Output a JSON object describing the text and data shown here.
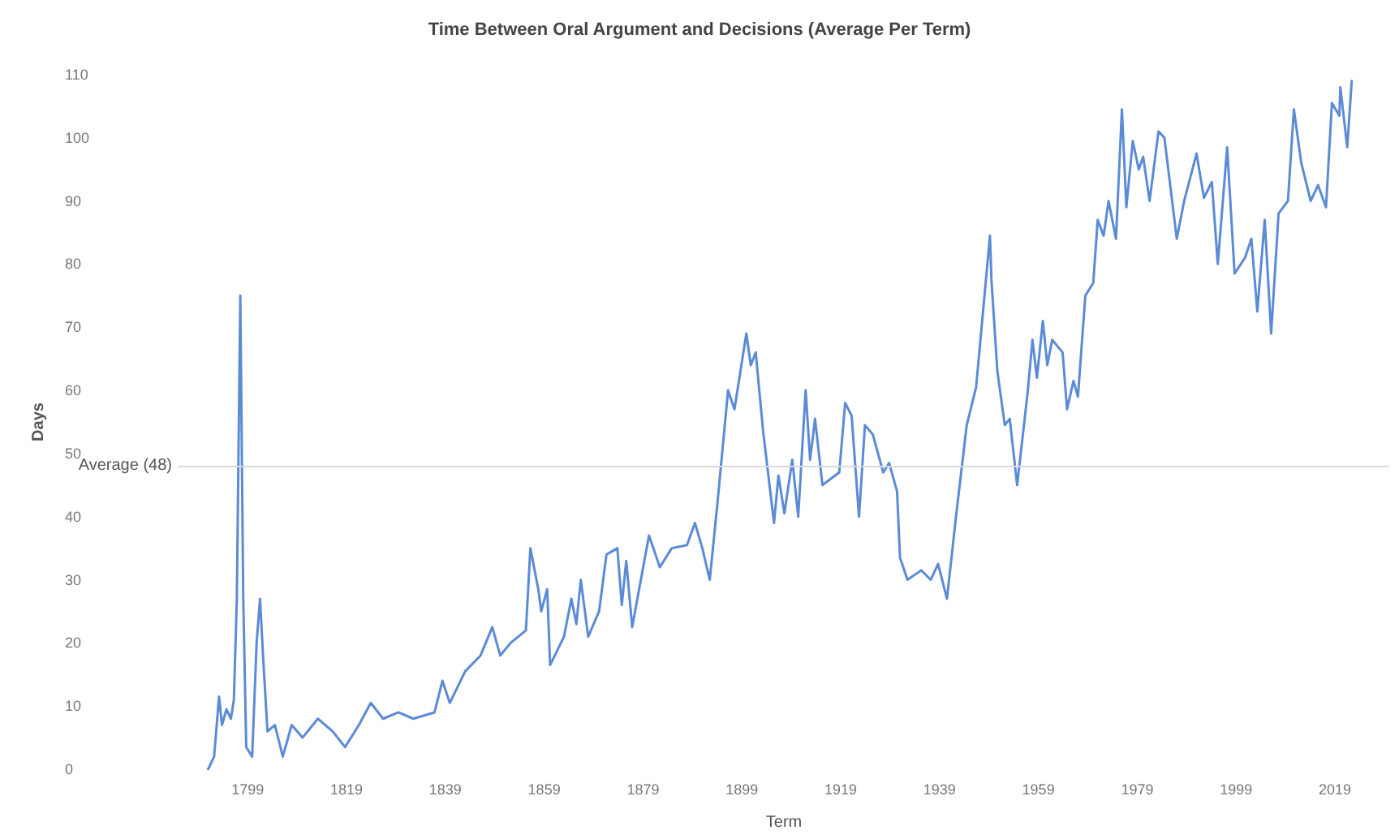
{
  "chart_data": {
    "type": "line",
    "title": "Time Between Oral Argument and Decisions (Average Per Term)",
    "xlabel": "Term",
    "ylabel": "Days",
    "x": [
      1791.0,
      1792.2,
      1793.2,
      1793.8,
      1794.7,
      1795.6,
      1796.2,
      1796.8,
      1797.5,
      1798.1,
      1798.7,
      1799.9,
      1800.8,
      1801.5,
      1802.1,
      1803.0,
      1804.5,
      1806.1,
      1807.9,
      1810.1,
      1813.2,
      1816.2,
      1818.7,
      1821.5,
      1823.9,
      1826.4,
      1829.5,
      1832.5,
      1836.8,
      1838.4,
      1839.9,
      1843.0,
      1846.1,
      1848.5,
      1850.1,
      1852.2,
      1855.3,
      1856.2,
      1857.8,
      1858.4,
      1859.6,
      1860.2,
      1863.0,
      1864.5,
      1865.5,
      1866.4,
      1867.9,
      1870.1,
      1871.6,
      1873.8,
      1874.7,
      1875.6,
      1876.8,
      1880.2,
      1882.4,
      1884.8,
      1887.9,
      1889.5,
      1891.0,
      1892.5,
      1894.1,
      1896.2,
      1897.5,
      1899.9,
      1900.8,
      1901.8,
      1903.3,
      1905.5,
      1906.4,
      1907.6,
      1909.2,
      1910.4,
      1911.9,
      1912.8,
      1913.8,
      1915.3,
      1918.7,
      1919.9,
      1921.2,
      1922.7,
      1923.9,
      1925.5,
      1927.6,
      1928.8,
      1930.4,
      1931.0,
      1932.5,
      1935.3,
      1937.2,
      1938.7,
      1940.5,
      1942.4,
      1944.5,
      1946.4,
      1949.2,
      1949.5,
      1950.7,
      1952.2,
      1953.2,
      1954.7,
      1956.8,
      1957.8,
      1958.7,
      1959.9,
      1960.8,
      1961.8,
      1963.9,
      1964.8,
      1966.1,
      1967.0,
      1968.5,
      1970.1,
      1971.0,
      1972.2,
      1973.2,
      1974.7,
      1975.9,
      1976.8,
      1978.1,
      1979.3,
      1980.2,
      1981.5,
      1983.3,
      1984.5,
      1987.0,
      1988.5,
      1991.0,
      1992.5,
      1994.1,
      1995.3,
      1997.2,
      1998.7,
      2000.8,
      2002.1,
      2003.3,
      2004.8,
      2006.1,
      2007.6,
      2009.5,
      2010.7,
      2012.2,
      2014.1,
      2015.6,
      2017.2,
      2018.4,
      2019.9,
      2020.1,
      2021.5,
      2022.4
    ],
    "series": [
      {
        "color": "#5b8bd6",
        "values": [
          0,
          2,
          11.5,
          7,
          9.5,
          8,
          11,
          27,
          75,
          27,
          3.5,
          2,
          20,
          27,
          18,
          6,
          7,
          2,
          7,
          5,
          8,
          6,
          3.5,
          7,
          10.5,
          8,
          9,
          8,
          9,
          14,
          10.5,
          15.5,
          18,
          22.5,
          18,
          20,
          22,
          35,
          28.5,
          25,
          28.5,
          16.5,
          21,
          27,
          23,
          30,
          21,
          25,
          34,
          35,
          26,
          33,
          22.5,
          37,
          32,
          35,
          35.5,
          39,
          35,
          30,
          42.5,
          60,
          57,
          69,
          64,
          66,
          53.5,
          39,
          46.5,
          40.5,
          49,
          40,
          60,
          49,
          55.5,
          45,
          47,
          58,
          56,
          40,
          54.5,
          53,
          47,
          48.5,
          44,
          33.5,
          30,
          31.5,
          30,
          32.5,
          27,
          40.5,
          54.5,
          60.5,
          84.5,
          77.5,
          63,
          54.5,
          55.5,
          45,
          59.5,
          68,
          62,
          71,
          64,
          68,
          66,
          57,
          61.5,
          59,
          75,
          77,
          87,
          84.5,
          90,
          84,
          104.5,
          89,
          99.5,
          95,
          97,
          90,
          101,
          100,
          84,
          90,
          97.5,
          90.5,
          93,
          80,
          98.5,
          78.5,
          81,
          84,
          72.5,
          87,
          69,
          88,
          90,
          104.5,
          96,
          90,
          92.5,
          89,
          105.5,
          103.5,
          108,
          98.5,
          109
        ]
      }
    ],
    "xlim": [
      1785,
      2030
    ],
    "xticks": [
      1799,
      1819,
      1839,
      1859,
      1879,
      1899,
      1919,
      1939,
      1959,
      1979,
      1999,
      2019
    ],
    "ylim": [
      0,
      110
    ],
    "yticks": [
      0,
      10,
      20,
      30,
      40,
      50,
      60,
      70,
      80,
      90,
      100,
      110
    ],
    "ref_lines": [
      {
        "axis": "y",
        "value": 48,
        "label": "Average (48)",
        "color": "#d9d9d9"
      }
    ],
    "grid": false,
    "marker": "none",
    "line_style": "solid"
  }
}
